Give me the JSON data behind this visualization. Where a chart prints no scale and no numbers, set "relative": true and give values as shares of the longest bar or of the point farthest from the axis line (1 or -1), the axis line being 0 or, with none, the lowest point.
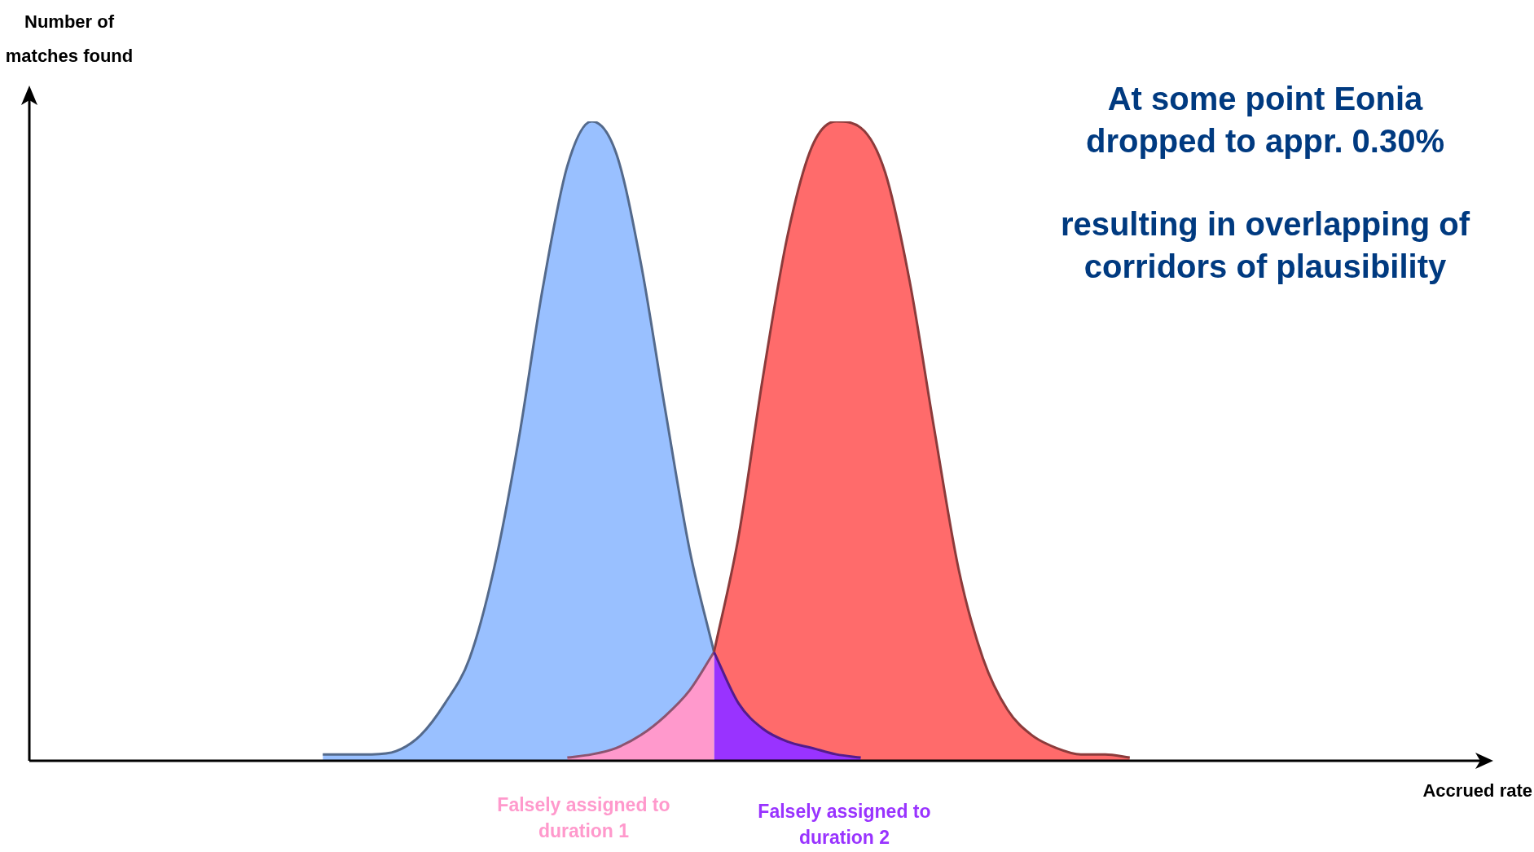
{
  "chart_data": {
    "type": "area",
    "relative": true,
    "xlabel": "Accrued rate",
    "ylabel": "Number of matches found",
    "annotations": [
      "At some point Eonia dropped to appr. 0.30%",
      "resulting in overlapping of corridors of plausibility"
    ],
    "categories": [
      null,
      null,
      null,
      null,
      null,
      null,
      null,
      null,
      null,
      null,
      null,
      null,
      null,
      null,
      null,
      null,
      null,
      null,
      null,
      null,
      null,
      null,
      null,
      null,
      null,
      null,
      null,
      null,
      null,
      null,
      null,
      null,
      null,
      null,
      null,
      null,
      null,
      null,
      null,
      null,
      null,
      null,
      null,
      null,
      null,
      null,
      null,
      null,
      null,
      null,
      null,
      null,
      null,
      null,
      null,
      null,
      null,
      null,
      null,
      null
    ],
    "series": [
      {
        "color": "#99c0ff",
        "values": [
          null,
          null,
          null,
          null,
          null,
          null,
          null,
          null,
          null,
          null,
          null,
          null,
          0.01,
          0.01,
          0.01,
          0.015,
          0.04,
          0.09,
          0.16,
          0.3,
          0.5,
          0.74,
          0.93,
          1.0,
          0.95,
          0.78,
          0.55,
          0.33,
          0.17,
          null,
          null,
          null,
          null,
          null,
          null,
          null,
          null,
          null,
          null,
          null,
          null,
          null,
          null,
          null,
          null,
          null,
          null,
          null,
          null,
          null,
          null,
          null,
          null,
          null,
          null,
          null,
          null,
          null,
          null,
          null
        ]
      },
      {
        "color": "#ff6b6b",
        "values": [
          null,
          null,
          null,
          null,
          null,
          null,
          null,
          null,
          null,
          null,
          null,
          null,
          null,
          null,
          null,
          null,
          null,
          null,
          null,
          null,
          null,
          null,
          null,
          null,
          null,
          null,
          null,
          null,
          0.17,
          0.35,
          0.6,
          0.82,
          0.96,
          1.0,
          0.99,
          0.92,
          0.75,
          0.52,
          0.3,
          0.16,
          0.08,
          0.04,
          0.02,
          0.01,
          0.01,
          0.005,
          null,
          null,
          null,
          null,
          null,
          null,
          null,
          null,
          null,
          null,
          null,
          null,
          null,
          null
        ]
      },
      {
        "name": "Falsely assigned to duration 1",
        "color": "#ff99cc",
        "values": [
          null,
          null,
          null,
          null,
          null,
          null,
          null,
          null,
          null,
          null,
          null,
          null,
          null,
          null,
          null,
          null,
          null,
          null,
          null,
          null,
          null,
          null,
          0.005,
          0.01,
          0.02,
          0.04,
          0.07,
          0.11,
          0.17,
          null,
          null,
          null,
          null,
          null,
          null,
          null,
          null,
          null,
          null,
          null,
          null,
          null,
          null,
          null,
          null,
          null,
          null,
          null,
          null,
          null,
          null,
          null,
          null,
          null,
          null,
          null,
          null,
          null,
          null,
          null
        ]
      },
      {
        "name": "Falsely assigned to duration 2",
        "color": "#9933ff",
        "values": [
          null,
          null,
          null,
          null,
          null,
          null,
          null,
          null,
          null,
          null,
          null,
          null,
          null,
          null,
          null,
          null,
          null,
          null,
          null,
          null,
          null,
          null,
          null,
          null,
          null,
          null,
          null,
          null,
          0.17,
          0.09,
          0.05,
          0.03,
          0.02,
          0.01,
          0.005,
          null,
          null,
          null,
          null,
          null,
          null,
          null,
          null,
          null,
          null,
          null,
          null,
          null,
          null,
          null,
          null,
          null,
          null,
          null,
          null,
          null,
          null,
          null,
          null,
          null
        ]
      }
    ],
    "legend": false
  }
}
